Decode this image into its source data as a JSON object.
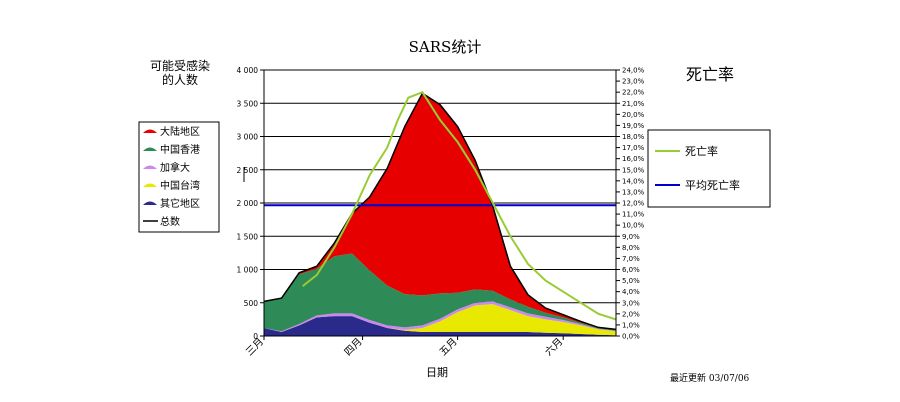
{
  "chart_data": {
    "type": "area",
    "title": "SARS统计",
    "ylabel_left": "可能受感染的人数",
    "ylabel_left_lines": [
      "可能受感染",
      "的人数"
    ],
    "ylabel_right": "死亡率",
    "xlabel": "日期",
    "footer": "最近更新 03/07/06",
    "y_left_range": [
      0,
      4000
    ],
    "y_left_ticks": [
      "0",
      "500",
      "1 000",
      "1 500",
      "2 000",
      "2 500",
      "3 000",
      "3 500",
      "4 000"
    ],
    "y_right_range": [
      0,
      24
    ],
    "y_right_ticks": [
      "0,0%",
      "1,0%",
      "2,0%",
      "3,0%",
      "4,0%",
      "5,0%",
      "6,0%",
      "7,0%",
      "8,0%",
      "9,0%",
      "10,0%",
      "11,0%",
      "12,0%",
      "13,0%",
      "14,0%",
      "15,0%",
      "16,0%",
      "17,0%",
      "18,0%",
      "19,0%",
      "20,0%",
      "21,0%",
      "22,0%",
      "23,0%",
      "24,0%"
    ],
    "x_range": [
      0,
      100
    ],
    "x_ticks": [
      {
        "label": "三月",
        "x": 0
      },
      {
        "label": "四月",
        "x": 28
      },
      {
        "label": "五月",
        "x": 55
      },
      {
        "label": "六月",
        "x": 85
      }
    ],
    "grid": "horizontal, at 500 steps",
    "legend_left": [
      {
        "name": "大陆地区",
        "color": "#e60000",
        "marker": "patch"
      },
      {
        "name": "中国香港",
        "color": "#2e8b57",
        "marker": "patch"
      },
      {
        "name": "加拿大",
        "color": "#cc88ee",
        "marker": "patch"
      },
      {
        "name": "中国台湾",
        "color": "#e8e800",
        "marker": "patch"
      },
      {
        "name": "其它地区",
        "color": "#2a2a8a",
        "marker": "patch"
      },
      {
        "name": "总数",
        "color": "#000000",
        "marker": "line"
      }
    ],
    "legend_right": [
      {
        "name": "死亡率",
        "color": "#99cc33"
      },
      {
        "name": "平均死亡率",
        "color": "#0000cc"
      }
    ],
    "x": [
      0,
      5,
      10,
      15,
      20,
      25,
      30,
      35,
      40,
      45,
      50,
      55,
      60,
      65,
      70,
      75,
      80,
      85,
      90,
      95,
      100
    ],
    "series": [
      {
        "name": "其它地区",
        "axis": "left",
        "color": "#2a2a8a",
        "values": [
          120,
          60,
          160,
          280,
          300,
          300,
          200,
          120,
          80,
          60,
          60,
          60,
          60,
          60,
          60,
          60,
          50,
          40,
          30,
          20,
          10
        ]
      },
      {
        "name": "中国台湾",
        "axis": "left",
        "color": "#e8e800",
        "values": [
          0,
          0,
          0,
          0,
          0,
          0,
          0,
          0,
          10,
          60,
          160,
          300,
          400,
          420,
          330,
          240,
          200,
          170,
          130,
          80,
          60
        ]
      },
      {
        "name": "加拿大",
        "axis": "left",
        "color": "#cc88ee",
        "values": [
          0,
          10,
          20,
          30,
          40,
          40,
          40,
          40,
          40,
          40,
          40,
          40,
          40,
          40,
          40,
          40,
          40,
          30,
          20,
          10,
          10
        ]
      },
      {
        "name": "中国香港",
        "axis": "left",
        "color": "#2e8b57",
        "values": [
          400,
          500,
          750,
          700,
          860,
          900,
          750,
          600,
          500,
          450,
          380,
          250,
          200,
          160,
          120,
          100,
          60,
          40,
          20,
          10,
          10
        ]
      },
      {
        "name": "大陆地区",
        "axis": "left",
        "color": "#e60000",
        "values": [
          0,
          0,
          20,
          40,
          200,
          600,
          1100,
          1760,
          2520,
          3040,
          2840,
          2500,
          1940,
          1270,
          500,
          180,
          70,
          40,
          20,
          10,
          10
        ]
      }
    ],
    "totals": [
      520,
      570,
      950,
      1050,
      1400,
      1840,
      2090,
      2520,
      3150,
      3650,
      3480,
      3150,
      2640,
      1950,
      1050,
      620,
      420,
      320,
      220,
      130,
      100
    ],
    "death_rate": {
      "name": "死亡率",
      "axis": "right",
      "color": "#99cc33",
      "x": [
        11,
        15,
        20,
        25,
        30,
        35,
        38,
        41,
        45,
        50,
        55,
        60,
        65,
        70,
        75,
        80,
        85,
        90,
        95,
        100
      ],
      "values": [
        4.5,
        5.5,
        8,
        11,
        14.5,
        17,
        19.5,
        21.5,
        22,
        19.5,
        17.5,
        15,
        12,
        9,
        6.5,
        5,
        4,
        3,
        2,
        1.5
      ]
    },
    "average_death_rate": {
      "name": "平均死亡率",
      "axis": "right",
      "color": "#0000cc",
      "value": 11.8
    }
  }
}
